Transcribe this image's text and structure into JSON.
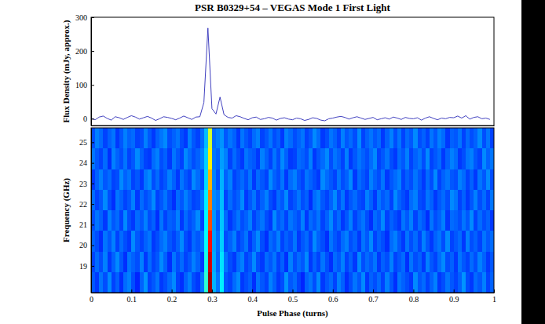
{
  "chart_data": [
    {
      "type": "line",
      "title": "PSR B0329+54 – VEGAS Mode 1 First Light",
      "ylabel": "Flux Density (mJy, approx.)",
      "color": "#2a2ab8",
      "xlim": [
        0,
        1
      ],
      "ylim": [
        -20,
        300
      ],
      "yticks": [
        0,
        100,
        200,
        300
      ],
      "tick_labels": "y",
      "x": [
        0,
        0.01,
        0.02,
        0.03,
        0.04,
        0.05,
        0.06,
        0.07,
        0.08,
        0.09,
        0.1,
        0.11,
        0.12,
        0.13,
        0.14,
        0.15,
        0.16,
        0.17,
        0.18,
        0.19,
        0.2,
        0.21,
        0.22,
        0.23,
        0.24,
        0.25,
        0.26,
        0.27,
        0.28,
        0.29,
        0.3,
        0.31,
        0.32,
        0.33,
        0.34,
        0.35,
        0.36,
        0.37,
        0.38,
        0.39,
        0.4,
        0.41,
        0.42,
        0.43,
        0.44,
        0.45,
        0.46,
        0.47,
        0.48,
        0.49,
        0.5,
        0.51,
        0.52,
        0.53,
        0.54,
        0.55,
        0.56,
        0.57,
        0.58,
        0.59,
        0.6,
        0.61,
        0.62,
        0.63,
        0.64,
        0.65,
        0.66,
        0.67,
        0.68,
        0.69,
        0.7,
        0.71,
        0.72,
        0.73,
        0.74,
        0.75,
        0.76,
        0.77,
        0.78,
        0.79,
        0.8,
        0.81,
        0.82,
        0.83,
        0.84,
        0.85,
        0.86,
        0.87,
        0.88,
        0.89,
        0.9,
        0.91,
        0.92,
        0.93,
        0.94,
        0.95,
        0.96,
        0.97,
        0.98,
        0.99
      ],
      "values": [
        2,
        -3,
        5,
        8,
        1,
        -4,
        6,
        3,
        -2,
        4,
        9,
        5,
        -1,
        3,
        7,
        2,
        -5,
        0,
        6,
        4,
        1,
        -3,
        2,
        8,
        3,
        -2,
        5,
        6,
        48,
        268,
        30,
        14,
        64,
        12,
        4,
        2,
        9,
        6,
        1,
        -3,
        3,
        5,
        -2,
        0,
        4,
        2,
        -4,
        1,
        3,
        -1,
        -3,
        2,
        0,
        -5,
        -2,
        3,
        1,
        -4,
        -6,
        0,
        2,
        5,
        7,
        4,
        -1,
        3,
        6,
        2,
        -2,
        1,
        4,
        -3,
        0,
        3,
        -1,
        5,
        2,
        -2,
        4,
        1,
        0,
        3,
        -4,
        2,
        6,
        1,
        -3,
        2,
        0,
        4,
        3,
        8,
        2,
        9,
        -1,
        4,
        6,
        0,
        2,
        -2
      ]
    },
    {
      "type": "heatmap",
      "xlabel": "Pulse Phase (turns)",
      "ylabel": "Frequency (GHz)",
      "xlim": [
        0,
        1
      ],
      "ylim": [
        17.7,
        25.7
      ],
      "xticks": [
        0,
        0.1,
        0.2,
        0.3,
        0.4,
        0.5,
        0.6,
        0.7,
        0.8,
        0.9,
        1
      ],
      "yticks": [
        19,
        20,
        21,
        22,
        23,
        24,
        25
      ],
      "heatmap": {
        "zlim": [
          0,
          1
        ],
        "x_bins": [
          0,
          0.01,
          0.02,
          0.03,
          0.04,
          0.05,
          0.06,
          0.07,
          0.08,
          0.09,
          0.1,
          0.11,
          0.12,
          0.13,
          0.14,
          0.15,
          0.16,
          0.17,
          0.18,
          0.19,
          0.2,
          0.21,
          0.22,
          0.23,
          0.24,
          0.25,
          0.26,
          0.27,
          0.28,
          0.29,
          0.3,
          0.31,
          0.32,
          0.33,
          0.34,
          0.35,
          0.36,
          0.37,
          0.38,
          0.39,
          0.4,
          0.41,
          0.42,
          0.43,
          0.44,
          0.45,
          0.46,
          0.47,
          0.48,
          0.49,
          0.5,
          0.51,
          0.52,
          0.53,
          0.54,
          0.55,
          0.56,
          0.57,
          0.58,
          0.59,
          0.6,
          0.61,
          0.62,
          0.63,
          0.64,
          0.65,
          0.66,
          0.67,
          0.68,
          0.69,
          0.7,
          0.71,
          0.72,
          0.73,
          0.74,
          0.75,
          0.76,
          0.77,
          0.78,
          0.79,
          0.8,
          0.81,
          0.82,
          0.83,
          0.84,
          0.85,
          0.86,
          0.87,
          0.88,
          0.89,
          0.9,
          0.91,
          0.92,
          0.93,
          0.94,
          0.95,
          0.96,
          0.97,
          0.98,
          0.99,
          1
        ],
        "y_bins": [
          17.7,
          18.7,
          19.7,
          20.7,
          21.7,
          22.7,
          23.7,
          24.7,
          25.7
        ],
        "values": [
          [
            0.21,
            0.18,
            0.24,
            0.2,
            0.26,
            0.19,
            0.22,
            0.17,
            0.23,
            0.25,
            0.2,
            0.16,
            0.22,
            0.27,
            0.19,
            0.21,
            0.24,
            0.18,
            0.2,
            0.23,
            0.26,
            0.19,
            0.17,
            0.22,
            0.25,
            0.2,
            0.18,
            0.24,
            0.42,
            0.97,
            0.3,
            0.24,
            0.36,
            0.21,
            0.19,
            0.23,
            0.26,
            0.18,
            0.2,
            0.22,
            0.17,
            0.24,
            0.21,
            0.19,
            0.25,
            0.22,
            0.18,
            0.2,
            0.27,
            0.21,
            0.23,
            0.19,
            0.16,
            0.22,
            0.24,
            0.2,
            0.26,
            0.18,
            0.21,
            0.23,
            0.19,
            0.25,
            0.22,
            0.17,
            0.2,
            0.24,
            0.21,
            0.26,
            0.18,
            0.22,
            0.2,
            0.23,
            0.19,
            0.25,
            0.21,
            0.17,
            0.24,
            0.22,
            0.2,
            0.18,
            0.26,
            0.21,
            0.23,
            0.19,
            0.22,
            0.25,
            0.18,
            0.2,
            0.24,
            0.21,
            0.19,
            0.22,
            0.27,
            0.2,
            0.18,
            0.23,
            0.21,
            0.25,
            0.19,
            0.22
          ],
          [
            0.19,
            0.23,
            0.2,
            0.25,
            0.18,
            0.22,
            0.26,
            0.21,
            0.17,
            0.24,
            0.22,
            0.2,
            0.25,
            0.18,
            0.23,
            0.19,
            0.21,
            0.26,
            0.22,
            0.17,
            0.24,
            0.2,
            0.23,
            0.19,
            0.21,
            0.25,
            0.22,
            0.18,
            0.4,
            0.92,
            0.29,
            0.22,
            0.35,
            0.24,
            0.2,
            0.18,
            0.23,
            0.25,
            0.19,
            0.21,
            0.26,
            0.2,
            0.18,
            0.23,
            0.21,
            0.24,
            0.19,
            0.22,
            0.17,
            0.25,
            0.2,
            0.23,
            0.21,
            0.26,
            0.18,
            0.22,
            0.19,
            0.24,
            0.2,
            0.17,
            0.23,
            0.21,
            0.25,
            0.19,
            0.22,
            0.18,
            0.26,
            0.2,
            0.23,
            0.21,
            0.24,
            0.18,
            0.22,
            0.2,
            0.25,
            0.19,
            0.21,
            0.23,
            0.17,
            0.24,
            0.2,
            0.22,
            0.18,
            0.25,
            0.21,
            0.19,
            0.23,
            0.26,
            0.2,
            0.22,
            0.18,
            0.24,
            0.21,
            0.19,
            0.23,
            0.2,
            0.25,
            0.22,
            0.18,
            0.21
          ],
          [
            0.22,
            0.2,
            0.17,
            0.24,
            0.21,
            0.25,
            0.19,
            0.23,
            0.2,
            0.18,
            0.26,
            0.21,
            0.19,
            0.22,
            0.24,
            0.18,
            0.2,
            0.23,
            0.25,
            0.21,
            0.19,
            0.22,
            0.26,
            0.2,
            0.18,
            0.23,
            0.21,
            0.24,
            0.38,
            0.86,
            0.28,
            0.23,
            0.33,
            0.2,
            0.22,
            0.25,
            0.19,
            0.21,
            0.24,
            0.18,
            0.22,
            0.26,
            0.2,
            0.17,
            0.23,
            0.21,
            0.25,
            0.19,
            0.22,
            0.2,
            0.24,
            0.18,
            0.21,
            0.23,
            0.19,
            0.26,
            0.22,
            0.2,
            0.17,
            0.24,
            0.21,
            0.19,
            0.23,
            0.25,
            0.2,
            0.22,
            0.18,
            0.24,
            0.21,
            0.26,
            0.19,
            0.22,
            0.2,
            0.17,
            0.23,
            0.25,
            0.21,
            0.18,
            0.24,
            0.2,
            0.23,
            0.19,
            0.25,
            0.21,
            0.18,
            0.22,
            0.24,
            0.2,
            0.26,
            0.19,
            0.21,
            0.23,
            0.18,
            0.25,
            0.2,
            0.22,
            0.19,
            0.24,
            0.21,
            0.23
          ],
          [
            0.2,
            0.24,
            0.22,
            0.18,
            0.25,
            0.21,
            0.23,
            0.19,
            0.26,
            0.2,
            0.18,
            0.23,
            0.21,
            0.25,
            0.2,
            0.22,
            0.17,
            0.24,
            0.19,
            0.22,
            0.21,
            0.25,
            0.18,
            0.23,
            0.2,
            0.22,
            0.26,
            0.19,
            0.37,
            0.8,
            0.27,
            0.21,
            0.32,
            0.23,
            0.18,
            0.21,
            0.24,
            0.2,
            0.22,
            0.25,
            0.19,
            0.22,
            0.24,
            0.2,
            0.18,
            0.26,
            0.21,
            0.23,
            0.19,
            0.24,
            0.22,
            0.2,
            0.25,
            0.18,
            0.23,
            0.21,
            0.24,
            0.19,
            0.22,
            0.26,
            0.2,
            0.23,
            0.18,
            0.21,
            0.25,
            0.19,
            0.22,
            0.24,
            0.2,
            0.17,
            0.23,
            0.21,
            0.26,
            0.19,
            0.22,
            0.2,
            0.18,
            0.24,
            0.21,
            0.25,
            0.19,
            0.23,
            0.21,
            0.17,
            0.24,
            0.2,
            0.22,
            0.25,
            0.18,
            0.23,
            0.22,
            0.2,
            0.24,
            0.21,
            0.26,
            0.19,
            0.23,
            0.2,
            0.22,
            0.18
          ],
          [
            0.23,
            0.19,
            0.21,
            0.26,
            0.2,
            0.17,
            0.24,
            0.22,
            0.19,
            0.21,
            0.25,
            0.18,
            0.23,
            0.2,
            0.22,
            0.26,
            0.19,
            0.21,
            0.24,
            0.2,
            0.17,
            0.23,
            0.21,
            0.25,
            0.22,
            0.19,
            0.2,
            0.24,
            0.36,
            0.75,
            0.26,
            0.24,
            0.31,
            0.19,
            0.23,
            0.2,
            0.22,
            0.26,
            0.18,
            0.21,
            0.24,
            0.19,
            0.22,
            0.25,
            0.2,
            0.18,
            0.23,
            0.21,
            0.26,
            0.19,
            0.21,
            0.24,
            0.2,
            0.22,
            0.17,
            0.23,
            0.25,
            0.21,
            0.19,
            0.22,
            0.26,
            0.2,
            0.24,
            0.18,
            0.21,
            0.23,
            0.2,
            0.19,
            0.25,
            0.22,
            0.18,
            0.24,
            0.21,
            0.23,
            0.19,
            0.26,
            0.22,
            0.2,
            0.18,
            0.23,
            0.25,
            0.2,
            0.19,
            0.24,
            0.22,
            0.18,
            0.21,
            0.23,
            0.2,
            0.26,
            0.24,
            0.19,
            0.22,
            0.18,
            0.21,
            0.25,
            0.2,
            0.23,
            0.19,
            0.24
          ],
          [
            0.18,
            0.22,
            0.25,
            0.21,
            0.23,
            0.19,
            0.2,
            0.26,
            0.22,
            0.24,
            0.19,
            0.21,
            0.18,
            0.24,
            0.26,
            0.2,
            0.23,
            0.19,
            0.21,
            0.25,
            0.22,
            0.18,
            0.24,
            0.21,
            0.19,
            0.26,
            0.23,
            0.2,
            0.34,
            0.7,
            0.25,
            0.2,
            0.3,
            0.22,
            0.25,
            0.19,
            0.21,
            0.23,
            0.2,
            0.24,
            0.18,
            0.23,
            0.21,
            0.19,
            0.26,
            0.22,
            0.2,
            0.24,
            0.18,
            0.23,
            0.25,
            0.21,
            0.19,
            0.24,
            0.22,
            0.2,
            0.18,
            0.26,
            0.23,
            0.21,
            0.19,
            0.24,
            0.2,
            0.22,
            0.26,
            0.18,
            0.23,
            0.21,
            0.19,
            0.25,
            0.22,
            0.2,
            0.24,
            0.18,
            0.21,
            0.23,
            0.25,
            0.19,
            0.22,
            0.2,
            0.24,
            0.21,
            0.18,
            0.23,
            0.2,
            0.26,
            0.19,
            0.22,
            0.24,
            0.21,
            0.2,
            0.25,
            0.23,
            0.19,
            0.22,
            0.18,
            0.24,
            0.21,
            0.26,
            0.2
          ],
          [
            0.24,
            0.21,
            0.19,
            0.23,
            0.17,
            0.25,
            0.22,
            0.2,
            0.24,
            0.19,
            0.21,
            0.26,
            0.22,
            0.19,
            0.18,
            0.23,
            0.25,
            0.2,
            0.22,
            0.18,
            0.24,
            0.21,
            0.19,
            0.26,
            0.23,
            0.2,
            0.22,
            0.25,
            0.33,
            0.64,
            0.24,
            0.22,
            0.28,
            0.25,
            0.19,
            0.23,
            0.2,
            0.18,
            0.24,
            0.22,
            0.21,
            0.18,
            0.25,
            0.22,
            0.19,
            0.24,
            0.2,
            0.26,
            0.22,
            0.18,
            0.19,
            0.23,
            0.22,
            0.2,
            0.25,
            0.18,
            0.21,
            0.23,
            0.26,
            0.2,
            0.24,
            0.22,
            0.19,
            0.25,
            0.18,
            0.21,
            0.24,
            0.22,
            0.2,
            0.23,
            0.26,
            0.19,
            0.21,
            0.24,
            0.2,
            0.18,
            0.23,
            0.21,
            0.25,
            0.19,
            0.22,
            0.24,
            0.2,
            0.26,
            0.19,
            0.21,
            0.23,
            0.18,
            0.22,
            0.25,
            0.23,
            0.18,
            0.2,
            0.24,
            0.25,
            0.21,
            0.19,
            0.26,
            0.22,
            0.24
          ],
          [
            0.2,
            0.25,
            0.23,
            0.19,
            0.22,
            0.24,
            0.18,
            0.21,
            0.25,
            0.22,
            0.23,
            0.19,
            0.2,
            0.25,
            0.21,
            0.18,
            0.22,
            0.24,
            0.26,
            0.2,
            0.22,
            0.24,
            0.2,
            0.18,
            0.25,
            0.21,
            0.19,
            0.23,
            0.31,
            0.58,
            0.23,
            0.25,
            0.27,
            0.21,
            0.24,
            0.22,
            0.18,
            0.24,
            0.21,
            0.19,
            0.23,
            0.25,
            0.19,
            0.21,
            0.24,
            0.2,
            0.22,
            0.18,
            0.25,
            0.23,
            0.2,
            0.22,
            0.24,
            0.19,
            0.21,
            0.26,
            0.23,
            0.18,
            0.2,
            0.24,
            0.22,
            0.19,
            0.25,
            0.21,
            0.23,
            0.2,
            0.26,
            0.19,
            0.22,
            0.24,
            0.21,
            0.23,
            0.18,
            0.22,
            0.25,
            0.2,
            0.24,
            0.19,
            0.23,
            0.21,
            0.26,
            0.2,
            0.22,
            0.19,
            0.24,
            0.21,
            0.25,
            0.23,
            0.18,
            0.22,
            0.21,
            0.24,
            0.19,
            0.23,
            0.2,
            0.22,
            0.26,
            0.2,
            0.24,
            0.19
          ]
        ]
      }
    }
  ]
}
